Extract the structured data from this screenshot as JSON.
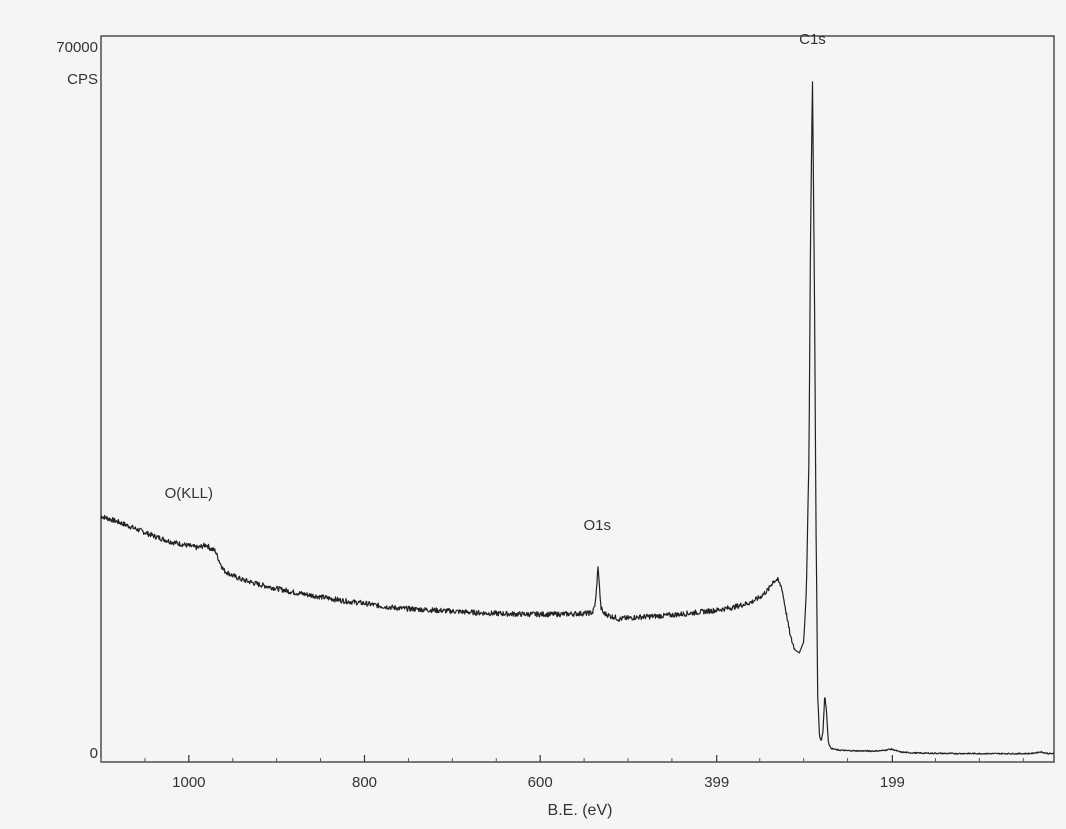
{
  "chart_data": {
    "type": "line",
    "title": "",
    "xlabel": "B.E. (eV)",
    "ylabel": "CPS",
    "x_reversed": true,
    "xlim": [
      1100,
      15
    ],
    "ylim": [
      0,
      70000
    ],
    "x_ticks": [
      1000,
      800,
      600,
      399,
      199
    ],
    "x_tick_labels": [
      "1000",
      "800",
      "600",
      "399",
      "199"
    ],
    "y_tick_labels": [
      "70000",
      "0"
    ],
    "grid": false,
    "line_color": "#222222",
    "annotations": [
      {
        "text": "O(KLL)",
        "x": 1000,
        "y": 26000
      },
      {
        "text": "O1s",
        "x": 535,
        "y": 22800
      },
      {
        "text": "C1s",
        "x": 290,
        "y": 71800
      }
    ],
    "series": [
      {
        "x": [
          1100,
          1080,
          1060,
          1040,
          1020,
          1000,
          990,
          980,
          975,
          970,
          965,
          960,
          950,
          940,
          920,
          900,
          880,
          860,
          840,
          820,
          800,
          780,
          760,
          740,
          720,
          700,
          680,
          660,
          640,
          620,
          600,
          580,
          560,
          545,
          540,
          537,
          534,
          531,
          528,
          525,
          520,
          515,
          510,
          505,
          500,
          490,
          480,
          470,
          460,
          440,
          420,
          400,
          380,
          360,
          350,
          340,
          335,
          330,
          325,
          320,
          315,
          310,
          305,
          300,
          297,
          294,
          292,
          290,
          288,
          286,
          284,
          282,
          280,
          278,
          276,
          274,
          272,
          270,
          268,
          266,
          262,
          258,
          250,
          240,
          230,
          220,
          210,
          200,
          190,
          180,
          170,
          160,
          150,
          140,
          130,
          120,
          110,
          100,
          90,
          80,
          70,
          60,
          50,
          40,
          30,
          25,
          20,
          15
        ],
        "y": [
          24200,
          23600,
          22900,
          22200,
          21600,
          21200,
          21000,
          21300,
          20900,
          20700,
          19600,
          18700,
          18200,
          17800,
          17300,
          16900,
          16500,
          16200,
          15900,
          15600,
          15400,
          15100,
          14900,
          14800,
          14700,
          14600,
          14500,
          14400,
          14350,
          14300,
          14300,
          14300,
          14350,
          14400,
          14500,
          15500,
          19200,
          15000,
          14400,
          14300,
          14100,
          14000,
          13800,
          13900,
          13900,
          14000,
          14050,
          14100,
          14150,
          14300,
          14500,
          14700,
          15000,
          15500,
          16000,
          16800,
          17600,
          17800,
          17000,
          14500,
          12000,
          10700,
          10400,
          11500,
          16500,
          30000,
          54000,
          68000,
          50000,
          24000,
          6000,
          2000,
          1500,
          2500,
          6200,
          4500,
          1500,
          900,
          750,
          700,
          620,
          580,
          540,
          520,
          510,
          500,
          550,
          700,
          400,
          330,
          300,
          280,
          270,
          260,
          250,
          250,
          250,
          245,
          240,
          240,
          240,
          240,
          240,
          260,
          420,
          300,
          240,
          230
        ]
      }
    ]
  }
}
